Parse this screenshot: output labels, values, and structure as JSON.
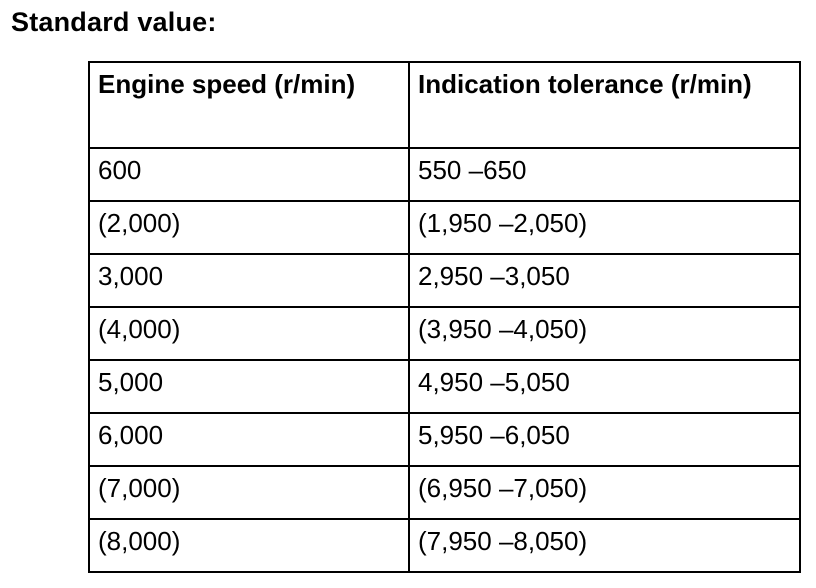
{
  "heading": "Standard value:",
  "table": {
    "headers": [
      "Engine speed (r/min)",
      "Indication tolerance (r/min)"
    ],
    "rows": [
      [
        "600",
        "550 –650"
      ],
      [
        "(2,000)",
        "(1,950 –2,050)"
      ],
      [
        "3,000",
        "2,950 –3,050"
      ],
      [
        "(4,000)",
        "(3,950 –4,050)"
      ],
      [
        "5,000",
        "4,950 –5,050"
      ],
      [
        "6,000",
        "5,950 –6,050"
      ],
      [
        "(7,000)",
        "(6,950 –7,050)"
      ],
      [
        "(8,000)",
        "(7,950 –8,050)"
      ]
    ]
  }
}
